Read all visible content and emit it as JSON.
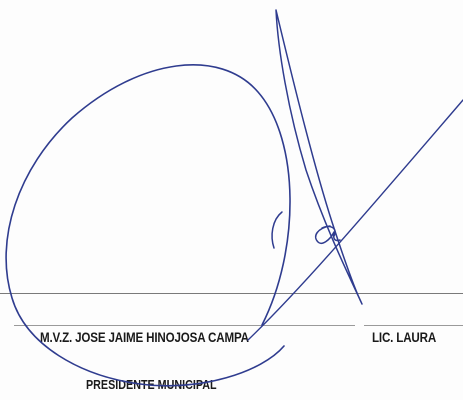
{
  "document": {
    "signatory_left": {
      "name": "M.V.Z. JOSE JAIME HINOJOSA CAMPA",
      "title": "PRESIDENTE MUNICIPAL"
    },
    "signatory_right": {
      "name": "LIC. LAURA"
    }
  },
  "colors": {
    "ink": "#2f3c8f",
    "text": "#1a1a1a",
    "rule": "#8c8c8c"
  }
}
